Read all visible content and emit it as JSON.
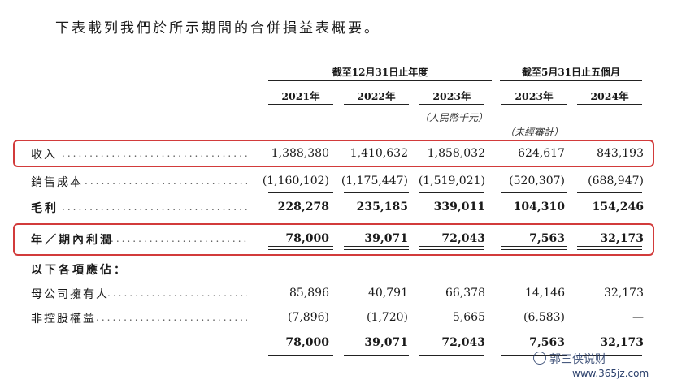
{
  "intro": "下表載列我們於所示期間的合併損益表概要。",
  "groups": {
    "full_year": "截至12月31日止年度",
    "five_months": "截至5月31日止五個月"
  },
  "years": [
    "2021年",
    "2022年",
    "2023年",
    "2023年",
    "2024年"
  ],
  "unit": "（人民幣千元）",
  "unaudited": "（未經審計）",
  "rows": [
    {
      "label": "收入",
      "values": [
        "1,388,380",
        "1,410,632",
        "1,858,032",
        "624,617",
        "843,193"
      ]
    },
    {
      "label": "銷售成本",
      "values": [
        "(1,160,102)",
        "(1,175,447)",
        "(1,519,021)",
        "(520,307)",
        "(688,947)"
      ]
    },
    {
      "label": "毛利",
      "values": [
        "228,278",
        "235,185",
        "339,011",
        "104,310",
        "154,246"
      ]
    },
    {
      "label": "年／期內利潤",
      "values": [
        "78,000",
        "39,071",
        "72,043",
        "7,563",
        "32,173"
      ]
    },
    {
      "label": "以下各項應佔："
    },
    {
      "label": "母公司擁有人",
      "values": [
        "85,896",
        "40,791",
        "66,378",
        "14,146",
        "32,173"
      ]
    },
    {
      "label": "非控股權益",
      "values": [
        "(7,896)",
        "(1,720)",
        "5,665",
        "(6,583)",
        "—"
      ]
    },
    {
      "label": "",
      "values": [
        "78,000",
        "39,071",
        "72,043",
        "7,563",
        "32,173"
      ]
    }
  ],
  "dots": "...........................................",
  "watermark": {
    "brand": "郭三侠说财",
    "url": "www.365jz.com"
  },
  "colors": {
    "highlight": "#d23b3b"
  }
}
